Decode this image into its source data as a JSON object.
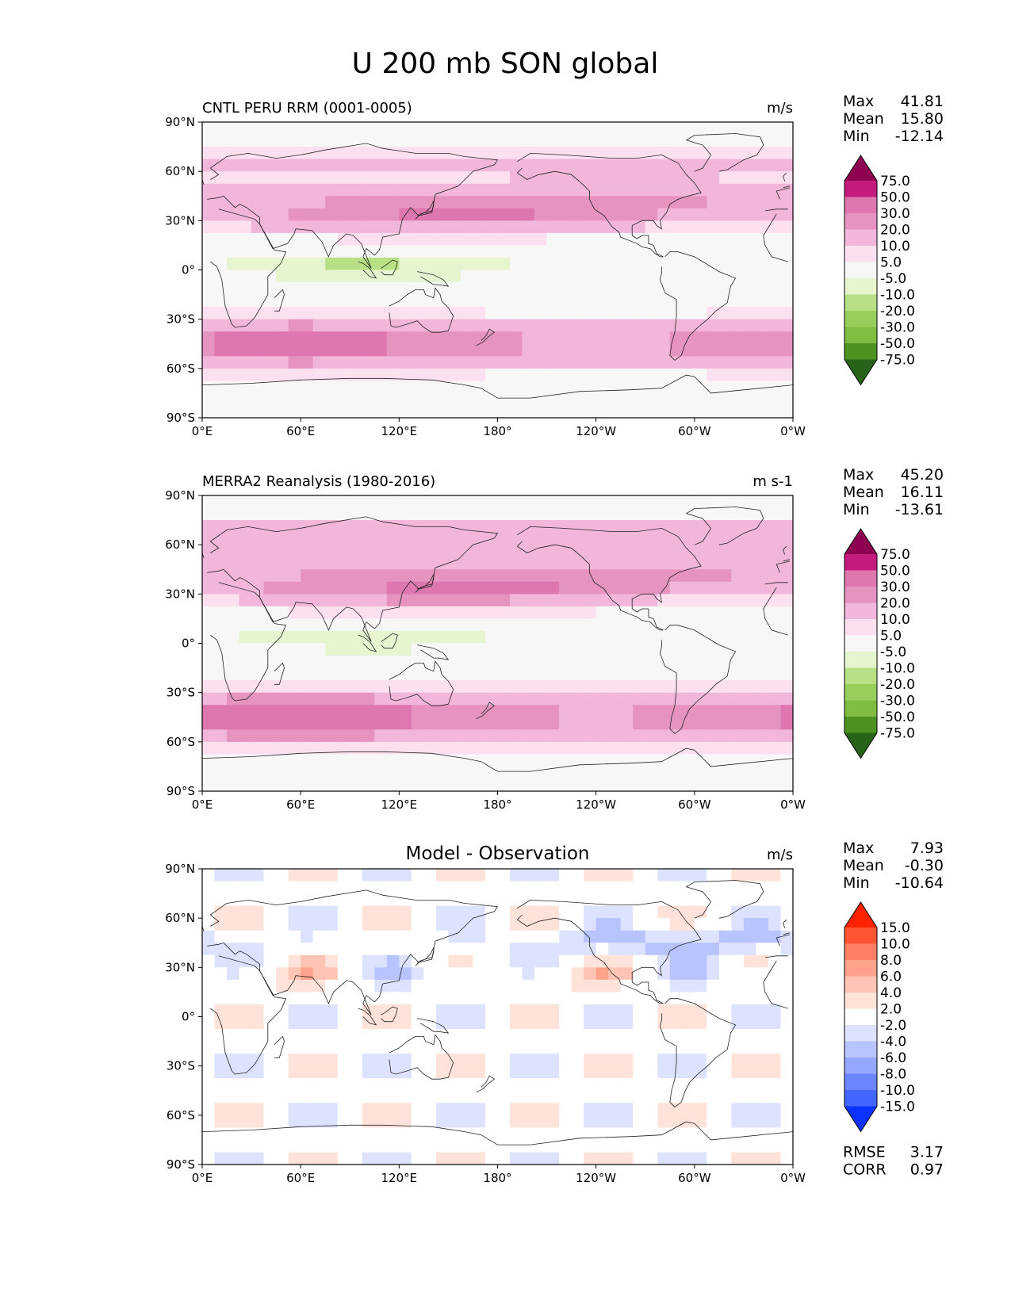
{
  "chart_data": {
    "type": "heatmap",
    "title": "U 200 mb SON global",
    "lon_ticks": [
      "0°E",
      "60°E",
      "120°E",
      "180°",
      "120°W",
      "60°W",
      "0°W"
    ],
    "lat_ticks": [
      "90°N",
      "60°N",
      "30°N",
      "0°",
      "30°S",
      "60°S",
      "90°S"
    ],
    "panels": [
      {
        "name": "model",
        "left_title": "CNTL PERU RRM (0001-0005)",
        "center_title": "",
        "units": "m/s",
        "stats": [
          {
            "label": "Max",
            "value": "41.81"
          },
          {
            "label": "Mean",
            "value": "15.80"
          },
          {
            "label": "Min",
            "value": "-12.14"
          }
        ],
        "extra_stats": [],
        "colorbar": {
          "levels": [
            "75.0",
            "50.0",
            "30.0",
            "20.0",
            "10.0",
            "5.0",
            "-5.0",
            "-10.0",
            "-20.0",
            "-30.0",
            "-50.0",
            "-75.0"
          ],
          "colors": [
            "#8e0152",
            "#c51b7d",
            "#de77ae",
            "#e693c0",
            "#f1b6da",
            "#fde0ef",
            "#f7f7f7",
            "#e6f5d0",
            "#b8e186",
            "#98cf5c",
            "#7fbc41",
            "#4d9221",
            "#276419"
          ]
        }
      },
      {
        "name": "observation",
        "left_title": "MERRA2 Reanalysis (1980-2016)",
        "center_title": "",
        "units": "m s-1",
        "stats": [
          {
            "label": "Max",
            "value": "45.20"
          },
          {
            "label": "Mean",
            "value": "16.11"
          },
          {
            "label": "Min",
            "value": "-13.61"
          }
        ],
        "extra_stats": [],
        "colorbar": {
          "levels": [
            "75.0",
            "50.0",
            "30.0",
            "20.0",
            "10.0",
            "5.0",
            "-5.0",
            "-10.0",
            "-20.0",
            "-30.0",
            "-50.0",
            "-75.0"
          ],
          "colors": [
            "#8e0152",
            "#c51b7d",
            "#de77ae",
            "#e693c0",
            "#f1b6da",
            "#fde0ef",
            "#f7f7f7",
            "#e6f5d0",
            "#b8e186",
            "#98cf5c",
            "#7fbc41",
            "#4d9221",
            "#276419"
          ]
        }
      },
      {
        "name": "difference",
        "left_title": "",
        "center_title": "Model - Observation",
        "units": "m/s",
        "stats": [
          {
            "label": "Max",
            "value": "7.93"
          },
          {
            "label": "Mean",
            "value": "-0.30"
          },
          {
            "label": "Min",
            "value": "-10.64"
          }
        ],
        "extra_stats": [
          {
            "label": "RMSE",
            "value": "3.17"
          },
          {
            "label": "CORR",
            "value": "0.97"
          }
        ],
        "colorbar": {
          "levels": [
            "15.0",
            "10.0",
            "8.0",
            "6.0",
            "4.0",
            "2.0",
            "-2.0",
            "-4.0",
            "-6.0",
            "-8.0",
            "-10.0",
            "-15.0"
          ],
          "colors": [
            "#ff2200",
            "#ff5533",
            "#ff7f66",
            "#ffa28c",
            "#ffc4b3",
            "#ffe3da",
            "#ffffff",
            "#dde3ff",
            "#b9c4ff",
            "#94a6ff",
            "#6b85ff",
            "#4466ff",
            "#0a33ff"
          ]
        }
      }
    ]
  }
}
